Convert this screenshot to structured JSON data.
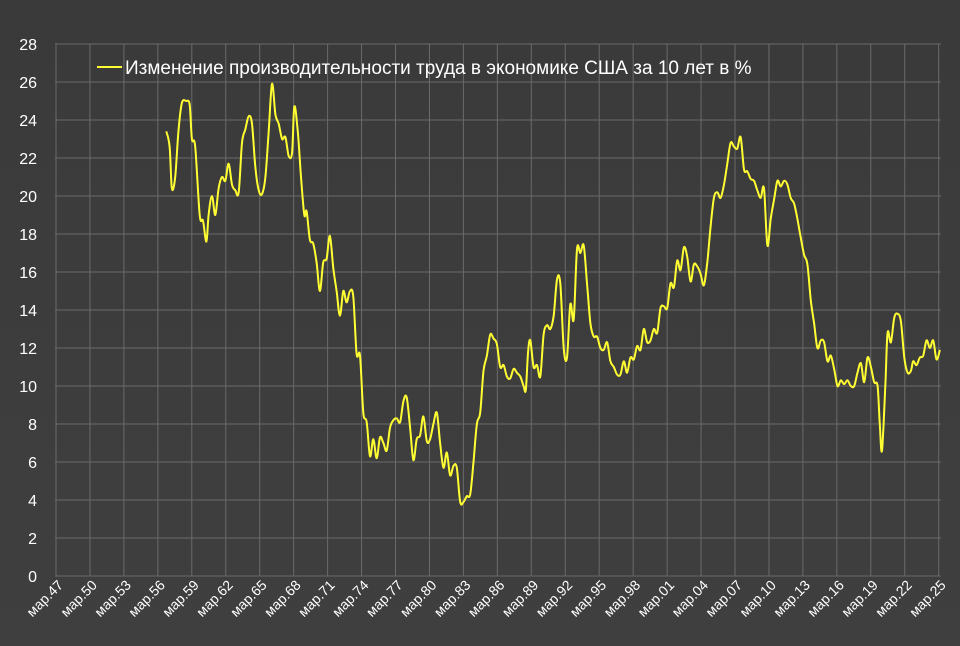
{
  "chart_data": {
    "type": "line",
    "title": "",
    "xlabel": "",
    "ylabel": "",
    "ylim": [
      0,
      28
    ],
    "y_ticks": [
      "0",
      "2",
      "4",
      "6",
      "8",
      "10",
      "12",
      "14",
      "16",
      "18",
      "20",
      "22",
      "24",
      "26",
      "28"
    ],
    "x_tick_labels": [
      "мар.47",
      "мар.50",
      "мар.53",
      "мар.56",
      "мар.59",
      "мар.62",
      "мар.65",
      "мар.68",
      "мар.71",
      "мар.74",
      "мар.77",
      "мар.80",
      "мар.83",
      "мар.86",
      "мар.89",
      "мар.92",
      "мар.95",
      "мар.98",
      "мар.01",
      "мар.04",
      "мар.07",
      "мар.10",
      "мар.13",
      "мар.16",
      "мар.19",
      "мар.22",
      "мар.25"
    ],
    "x_range_years": [
      1947.2,
      2025.5
    ],
    "grid": true,
    "legend_position": "top-left",
    "series": [
      {
        "name": "Изменение производительности труда в экономике США за 10 лет в %",
        "color": "#ffff33",
        "points": [
          [
            1957.2,
            23.4
          ],
          [
            1957.5,
            22.6
          ],
          [
            1957.7,
            20.4
          ],
          [
            1958.0,
            21.0
          ],
          [
            1958.3,
            23.5
          ],
          [
            1958.6,
            24.9
          ],
          [
            1959.0,
            25.0
          ],
          [
            1959.3,
            24.8
          ],
          [
            1959.5,
            23.0
          ],
          [
            1959.8,
            22.6
          ],
          [
            1960.2,
            19.0
          ],
          [
            1960.5,
            18.7
          ],
          [
            1960.8,
            17.6
          ],
          [
            1961.0,
            19.0
          ],
          [
            1961.3,
            20.0
          ],
          [
            1961.6,
            19.0
          ],
          [
            1961.9,
            20.4
          ],
          [
            1962.2,
            21.0
          ],
          [
            1962.5,
            20.8
          ],
          [
            1962.8,
            21.7
          ],
          [
            1963.1,
            20.6
          ],
          [
            1963.4,
            20.3
          ],
          [
            1963.7,
            20.2
          ],
          [
            1964.0,
            22.8
          ],
          [
            1964.3,
            23.5
          ],
          [
            1964.6,
            24.2
          ],
          [
            1964.9,
            23.8
          ],
          [
            1965.2,
            21.5
          ],
          [
            1965.5,
            20.3
          ],
          [
            1965.8,
            20.1
          ],
          [
            1966.1,
            21.0
          ],
          [
            1966.4,
            23.4
          ],
          [
            1966.7,
            25.9
          ],
          [
            1967.0,
            24.3
          ],
          [
            1967.3,
            23.8
          ],
          [
            1967.6,
            23.0
          ],
          [
            1967.9,
            23.1
          ],
          [
            1968.2,
            22.1
          ],
          [
            1968.5,
            22.3
          ],
          [
            1968.7,
            24.7
          ],
          [
            1969.0,
            23.5
          ],
          [
            1969.3,
            21.0
          ],
          [
            1969.6,
            19.0
          ],
          [
            1969.8,
            19.2
          ],
          [
            1970.1,
            17.7
          ],
          [
            1970.4,
            17.5
          ],
          [
            1970.7,
            16.5
          ],
          [
            1971.0,
            15.0
          ],
          [
            1971.3,
            16.5
          ],
          [
            1971.6,
            16.7
          ],
          [
            1971.9,
            17.9
          ],
          [
            1972.2,
            16.2
          ],
          [
            1972.5,
            15.0
          ],
          [
            1972.8,
            13.7
          ],
          [
            1973.1,
            15.0
          ],
          [
            1973.4,
            14.4
          ],
          [
            1973.7,
            15.0
          ],
          [
            1974.0,
            14.7
          ],
          [
            1974.3,
            11.7
          ],
          [
            1974.6,
            11.6
          ],
          [
            1974.9,
            8.6
          ],
          [
            1975.2,
            8.1
          ],
          [
            1975.5,
            6.3
          ],
          [
            1975.8,
            7.2
          ],
          [
            1976.1,
            6.2
          ],
          [
            1976.4,
            7.3
          ],
          [
            1976.7,
            7.0
          ],
          [
            1977.0,
            6.6
          ],
          [
            1977.3,
            7.8
          ],
          [
            1977.6,
            8.2
          ],
          [
            1977.9,
            8.3
          ],
          [
            1978.2,
            8.1
          ],
          [
            1978.5,
            9.2
          ],
          [
            1978.8,
            9.4
          ],
          [
            1979.1,
            7.8
          ],
          [
            1979.4,
            6.1
          ],
          [
            1979.7,
            7.2
          ],
          [
            1980.0,
            7.4
          ],
          [
            1980.3,
            8.4
          ],
          [
            1980.6,
            7.1
          ],
          [
            1980.9,
            7.2
          ],
          [
            1981.2,
            8.0
          ],
          [
            1981.5,
            8.6
          ],
          [
            1981.8,
            7.0
          ],
          [
            1982.1,
            5.7
          ],
          [
            1982.4,
            6.5
          ],
          [
            1982.7,
            5.3
          ],
          [
            1983.0,
            5.8
          ],
          [
            1983.3,
            5.7
          ],
          [
            1983.6,
            3.9
          ],
          [
            1983.9,
            3.9
          ],
          [
            1984.2,
            4.2
          ],
          [
            1984.5,
            4.3
          ],
          [
            1984.8,
            6.0
          ],
          [
            1985.1,
            8.0
          ],
          [
            1985.4,
            8.6
          ],
          [
            1985.7,
            10.8
          ],
          [
            1986.0,
            11.6
          ],
          [
            1986.3,
            12.7
          ],
          [
            1986.6,
            12.5
          ],
          [
            1986.9,
            12.2
          ],
          [
            1987.2,
            11.0
          ],
          [
            1987.5,
            11.1
          ],
          [
            1987.8,
            10.5
          ],
          [
            1988.1,
            10.4
          ],
          [
            1988.4,
            10.9
          ],
          [
            1988.7,
            10.7
          ],
          [
            1989.0,
            10.5
          ],
          [
            1989.3,
            10.0
          ],
          [
            1989.5,
            9.8
          ],
          [
            1989.7,
            11.8
          ],
          [
            1989.9,
            12.4
          ],
          [
            1990.2,
            11.0
          ],
          [
            1990.5,
            11.1
          ],
          [
            1990.8,
            10.5
          ],
          [
            1991.1,
            12.7
          ],
          [
            1991.4,
            13.2
          ],
          [
            1991.7,
            13.0
          ],
          [
            1992.0,
            13.7
          ],
          [
            1992.3,
            15.6
          ],
          [
            1992.6,
            15.4
          ],
          [
            1992.9,
            12.0
          ],
          [
            1993.2,
            11.5
          ],
          [
            1993.5,
            14.3
          ],
          [
            1993.8,
            13.5
          ],
          [
            1994.1,
            17.2
          ],
          [
            1994.4,
            17.0
          ],
          [
            1994.7,
            17.4
          ],
          [
            1995.0,
            15.4
          ],
          [
            1995.3,
            13.3
          ],
          [
            1995.6,
            12.6
          ],
          [
            1995.9,
            12.6
          ],
          [
            1996.2,
            12.0
          ],
          [
            1996.5,
            11.9
          ],
          [
            1996.8,
            12.3
          ],
          [
            1997.1,
            11.3
          ],
          [
            1997.4,
            11.0
          ],
          [
            1997.7,
            10.6
          ],
          [
            1998.0,
            10.6
          ],
          [
            1998.3,
            11.3
          ],
          [
            1998.6,
            10.7
          ],
          [
            1998.9,
            11.5
          ],
          [
            1999.2,
            11.4
          ],
          [
            1999.5,
            12.1
          ],
          [
            1999.8,
            11.9
          ],
          [
            2000.1,
            13.0
          ],
          [
            2000.4,
            12.3
          ],
          [
            2000.7,
            12.4
          ],
          [
            2001.0,
            13.0
          ],
          [
            2001.3,
            12.8
          ],
          [
            2001.6,
            14.1
          ],
          [
            2001.9,
            14.2
          ],
          [
            2002.2,
            14.1
          ],
          [
            2002.5,
            15.4
          ],
          [
            2002.8,
            15.2
          ],
          [
            2003.1,
            16.6
          ],
          [
            2003.4,
            16.1
          ],
          [
            2003.7,
            17.3
          ],
          [
            2004.0,
            16.8
          ],
          [
            2004.3,
            15.5
          ],
          [
            2004.6,
            16.4
          ],
          [
            2004.9,
            16.3
          ],
          [
            2005.2,
            15.9
          ],
          [
            2005.5,
            15.3
          ],
          [
            2005.8,
            16.5
          ],
          [
            2006.1,
            18.4
          ],
          [
            2006.4,
            19.9
          ],
          [
            2006.7,
            20.2
          ],
          [
            2007.0,
            19.9
          ],
          [
            2007.3,
            20.6
          ],
          [
            2007.6,
            21.7
          ],
          [
            2007.9,
            22.8
          ],
          [
            2008.2,
            22.6
          ],
          [
            2008.5,
            22.5
          ],
          [
            2008.8,
            23.1
          ],
          [
            2009.1,
            21.4
          ],
          [
            2009.4,
            21.3
          ],
          [
            2009.7,
            20.9
          ],
          [
            2010.0,
            20.8
          ],
          [
            2010.3,
            20.3
          ],
          [
            2010.6,
            19.9
          ],
          [
            2010.9,
            20.4
          ],
          [
            2011.2,
            17.4
          ],
          [
            2011.5,
            18.8
          ],
          [
            2011.8,
            19.8
          ],
          [
            2012.1,
            20.8
          ],
          [
            2012.4,
            20.5
          ],
          [
            2012.7,
            20.8
          ],
          [
            2013.0,
            20.6
          ],
          [
            2013.3,
            19.9
          ],
          [
            2013.6,
            19.6
          ],
          [
            2013.9,
            18.8
          ],
          [
            2014.2,
            17.8
          ],
          [
            2014.5,
            16.9
          ],
          [
            2014.8,
            16.4
          ],
          [
            2015.1,
            14.5
          ],
          [
            2015.4,
            13.3
          ],
          [
            2015.7,
            12.0
          ],
          [
            2016.0,
            12.4
          ],
          [
            2016.3,
            12.3
          ],
          [
            2016.6,
            11.3
          ],
          [
            2016.9,
            11.6
          ],
          [
            2017.2,
            10.9
          ],
          [
            2017.5,
            10.0
          ],
          [
            2017.8,
            10.3
          ],
          [
            2018.1,
            10.1
          ],
          [
            2018.4,
            10.3
          ],
          [
            2018.7,
            10.0
          ],
          [
            2019.0,
            10.0
          ],
          [
            2019.3,
            10.7
          ],
          [
            2019.6,
            11.2
          ],
          [
            2019.9,
            10.2
          ],
          [
            2020.2,
            11.5
          ],
          [
            2020.5,
            11.0
          ],
          [
            2020.8,
            10.2
          ],
          [
            2021.1,
            10.0
          ],
          [
            2021.3,
            8.0
          ],
          [
            2021.5,
            6.6
          ],
          [
            2021.8,
            10.0
          ],
          [
            2022.0,
            12.8
          ],
          [
            2022.3,
            12.3
          ],
          [
            2022.6,
            13.6
          ],
          [
            2022.9,
            13.8
          ],
          [
            2023.2,
            13.4
          ],
          [
            2023.5,
            11.5
          ],
          [
            2023.8,
            10.7
          ],
          [
            2024.1,
            10.8
          ],
          [
            2024.3,
            11.3
          ],
          [
            2024.6,
            11.1
          ],
          [
            2024.9,
            11.5
          ],
          [
            2025.2,
            11.6
          ],
          [
            2025.5,
            12.4
          ],
          [
            2025.8,
            12.0
          ],
          [
            2026.1,
            12.4
          ],
          [
            2026.4,
            11.4
          ],
          [
            2026.7,
            11.9
          ]
        ]
      }
    ]
  }
}
